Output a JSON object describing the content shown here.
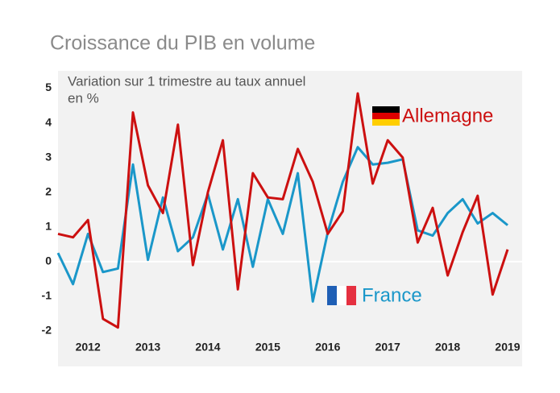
{
  "chart_data": {
    "type": "line",
    "title": "Croissance du PIB en volume",
    "subtitle": "Variation sur 1 trimestre au taux annuel",
    "y_label": "en %",
    "categories": [
      null,
      null,
      "2012",
      null,
      null,
      null,
      "2013",
      null,
      null,
      null,
      "2014",
      null,
      null,
      null,
      "2015",
      null,
      null,
      null,
      "2016",
      null,
      null,
      null,
      "2017",
      null,
      null,
      null,
      "2018",
      null,
      null,
      null,
      "2019"
    ],
    "series": [
      {
        "name": "France",
        "color": "#1a97c9",
        "values": [
          0.25,
          -0.65,
          0.8,
          -0.3,
          -0.2,
          2.8,
          0.05,
          1.85,
          0.3,
          0.7,
          1.95,
          0.35,
          1.8,
          -0.15,
          1.8,
          0.8,
          2.55,
          -1.15,
          0.85,
          2.3,
          3.3,
          2.8,
          2.85,
          2.95,
          0.9,
          0.75,
          1.4,
          1.8,
          1.1,
          1.4,
          1.05
        ]
      },
      {
        "name": "Allemagne",
        "color": "#cc1010",
        "values": [
          0.8,
          0.7,
          1.2,
          -1.65,
          -1.9,
          4.3,
          2.2,
          1.4,
          3.95,
          -0.1,
          2.0,
          3.5,
          -0.8,
          2.55,
          1.85,
          1.8,
          3.25,
          2.3,
          0.8,
          1.45,
          4.85,
          2.25,
          3.5,
          3.0,
          0.55,
          1.55,
          -0.4,
          0.85,
          1.9,
          -0.95,
          0.35
        ]
      }
    ],
    "ylim": [
      -2.2,
      5.5
    ],
    "yticks": [
      5,
      4,
      3,
      2,
      1,
      0,
      -1,
      -2
    ]
  }
}
